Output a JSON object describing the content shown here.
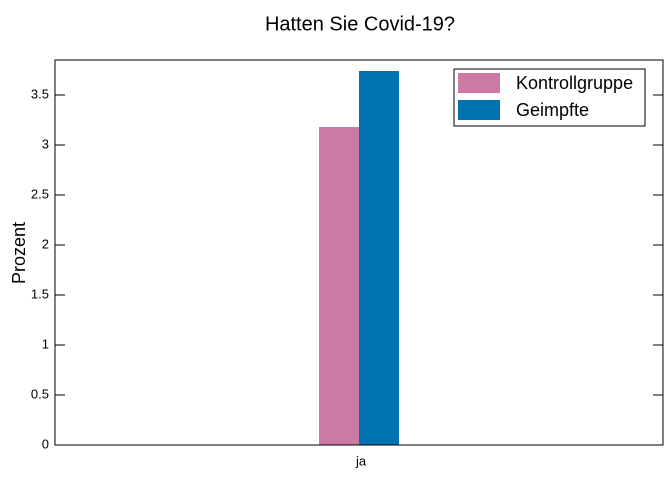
{
  "chart_data": {
    "type": "bar",
    "title": "Hatten Sie Covid-19?",
    "y_label": "Prozent",
    "categories": [
      "ja"
    ],
    "series": [
      {
        "name": "Kontrollgruppe",
        "color": "#cc79a7",
        "values": [
          3.18
        ]
      },
      {
        "name": "Geimpfte",
        "color": "#0072b2",
        "values": [
          3.74
        ]
      }
    ],
    "ylim": [
      0,
      3.85
    ],
    "yticks": [
      0,
      0.5,
      1,
      1.5,
      2,
      2.5,
      3,
      3.5
    ],
    "legend": "upper right"
  }
}
